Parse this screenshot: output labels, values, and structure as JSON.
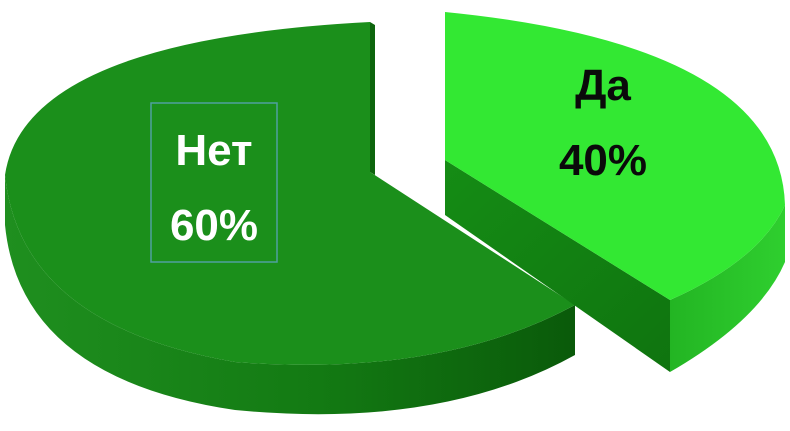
{
  "chart_data": {
    "type": "pie",
    "style": "3d-exploded",
    "slices": [
      {
        "label": "Нет",
        "value": 60,
        "value_label": "60%",
        "color": "#1a8f1a",
        "side_color": "#0f6b0f",
        "text_color": "#ffffff"
      },
      {
        "label": "Да",
        "value": 40,
        "value_label": "40%",
        "color": "#33e833",
        "side_color": "#1ea61e",
        "text_color": "#0a0a0a"
      }
    ],
    "label_box_color": "#4fa0a0",
    "background": "#ffffff"
  }
}
